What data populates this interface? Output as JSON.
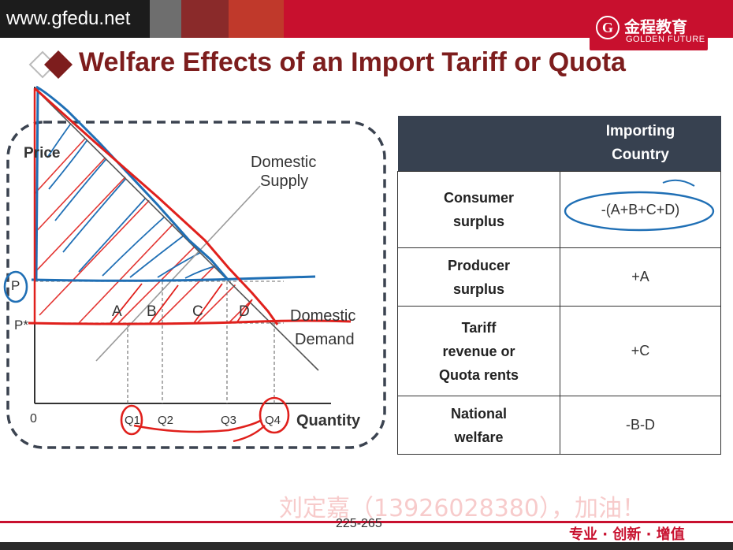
{
  "header": {
    "site_url": "www.gfedu.net",
    "brand_cn": "金程教育",
    "brand_en": "GOLDEN FUTURE"
  },
  "slide": {
    "title": "Welfare Effects of an Import Tariff or Quota",
    "page_number": "225-265",
    "watermark": "刘定嘉（13926028380），加油！",
    "slogan": "专业 · 创新 · 增值"
  },
  "diagram": {
    "y_axis_label": "Price",
    "x_axis_label": "Quantity",
    "origin_label": "0",
    "price_labels": [
      "P",
      "P*"
    ],
    "supply_label_line1": "Domestic",
    "supply_label_line2": "Supply",
    "demand_label_line1": "Domestic",
    "demand_label_line2": "Demand",
    "area_labels": [
      "A",
      "B",
      "C",
      "D"
    ],
    "quantity_labels": [
      "Q1",
      "Q2",
      "Q3",
      "Q4"
    ]
  },
  "table": {
    "header_line1": "Importing",
    "header_line2": "Country",
    "rows": [
      {
        "label_lines": [
          "Consumer",
          "surplus"
        ],
        "value": "-(A+B+C+D)"
      },
      {
        "label_lines": [
          "Producer",
          "surplus"
        ],
        "value": "+A"
      },
      {
        "label_lines": [
          "Tariff",
          "revenue or",
          "Quota rents"
        ],
        "value": "+C"
      },
      {
        "label_lines": [
          "National",
          "welfare"
        ],
        "value": "-B-D"
      }
    ]
  },
  "colors": {
    "title": "#7d1d1d",
    "brand_red": "#c8102e",
    "table_header": "#374150",
    "annotation_blue": "#1f6fb5",
    "annotation_red": "#e0201c"
  }
}
